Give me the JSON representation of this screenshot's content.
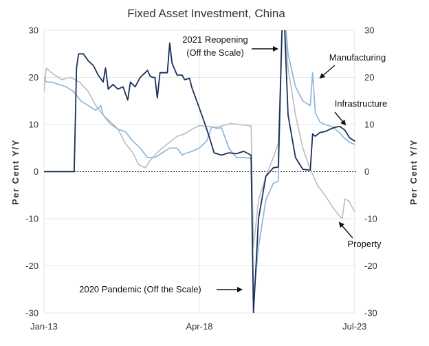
{
  "chart_data": {
    "type": "line",
    "title": "Fixed Asset Investment, China",
    "ylabel_left": "Per Cent Y/Y",
    "ylabel_right": "Per Cent Y/Y",
    "ylim": [
      -30,
      30
    ],
    "yticks": [
      30,
      20,
      10,
      0,
      -10,
      -20,
      -30
    ],
    "xlim": [
      2013.0,
      2023.55
    ],
    "xticks": [
      {
        "label": "Jan-13",
        "value": 2013.0
      },
      {
        "label": "Apr-18",
        "value": 2018.25
      },
      {
        "label": "Jul-23",
        "value": 2023.5
      }
    ],
    "colors": {
      "Property": "#bcbcbc",
      "Infrastructure": "#1a2f5a",
      "Manufacturing": "#8fb6d8",
      "zero_line": "#333333"
    },
    "series": [
      {
        "name": "Property",
        "points": [
          [
            2013.0,
            17
          ],
          [
            2013.08,
            22
          ],
          [
            2013.25,
            21
          ],
          [
            2013.6,
            19.5
          ],
          [
            2013.9,
            20
          ],
          [
            2014.2,
            19
          ],
          [
            2014.5,
            17
          ],
          [
            2014.75,
            14
          ],
          [
            2015.0,
            12
          ],
          [
            2015.25,
            10
          ],
          [
            2015.5,
            9
          ],
          [
            2015.75,
            6
          ],
          [
            2016.0,
            4
          ],
          [
            2016.2,
            1.5
          ],
          [
            2016.42,
            0.8
          ],
          [
            2016.6,
            2.5
          ],
          [
            2016.9,
            4.5
          ],
          [
            2017.2,
            6
          ],
          [
            2017.5,
            7.5
          ],
          [
            2017.75,
            8
          ],
          [
            2018.0,
            9
          ],
          [
            2018.25,
            9.8
          ],
          [
            2018.5,
            9.6
          ],
          [
            2018.8,
            9.4
          ],
          [
            2019.0,
            9.7
          ],
          [
            2019.3,
            10.2
          ],
          [
            2019.6,
            10
          ],
          [
            2019.9,
            9.8
          ],
          [
            2020.0,
            9.7
          ],
          [
            2020.08,
            -16
          ],
          [
            2020.25,
            -6
          ],
          [
            2020.5,
            -1
          ],
          [
            2020.75,
            3
          ],
          [
            2020.92,
            6
          ],
          [
            2021.08,
            35
          ],
          [
            2021.25,
            22
          ],
          [
            2021.5,
            12
          ],
          [
            2021.75,
            5
          ],
          [
            2022.0,
            0.5
          ],
          [
            2022.25,
            -3
          ],
          [
            2022.5,
            -5
          ],
          [
            2022.75,
            -7.5
          ],
          [
            2023.0,
            -9.5
          ],
          [
            2023.08,
            -10
          ],
          [
            2023.17,
            -5.8
          ],
          [
            2023.3,
            -6.2
          ],
          [
            2023.5,
            -8.5
          ]
        ]
      },
      {
        "name": "Infrastructure",
        "points": [
          [
            2013.0,
            0
          ],
          [
            2014.0,
            0
          ],
          [
            2014.02,
            0
          ],
          [
            2014.1,
            22
          ],
          [
            2014.17,
            25
          ],
          [
            2014.33,
            25
          ],
          [
            2014.5,
            23.5
          ],
          [
            2014.67,
            22.5
          ],
          [
            2014.83,
            20.5
          ],
          [
            2015.0,
            19
          ],
          [
            2015.08,
            22
          ],
          [
            2015.17,
            17.5
          ],
          [
            2015.33,
            18.5
          ],
          [
            2015.5,
            17.5
          ],
          [
            2015.67,
            18
          ],
          [
            2015.83,
            15.2
          ],
          [
            2015.92,
            19
          ],
          [
            2016.08,
            18
          ],
          [
            2016.25,
            20
          ],
          [
            2016.42,
            21
          ],
          [
            2016.5,
            21.5
          ],
          [
            2016.58,
            20.3
          ],
          [
            2016.67,
            20
          ],
          [
            2016.75,
            20
          ],
          [
            2016.83,
            15.6
          ],
          [
            2016.92,
            21
          ],
          [
            2017.08,
            21
          ],
          [
            2017.17,
            21
          ],
          [
            2017.25,
            27.3
          ],
          [
            2017.33,
            23
          ],
          [
            2017.5,
            20.5
          ],
          [
            2017.67,
            20.5
          ],
          [
            2017.75,
            19.5
          ],
          [
            2017.92,
            19.8
          ],
          [
            2018.0,
            17.8
          ],
          [
            2018.25,
            13.5
          ],
          [
            2018.42,
            10.5
          ],
          [
            2018.58,
            7.5
          ],
          [
            2018.75,
            4
          ],
          [
            2019.0,
            3.5
          ],
          [
            2019.25,
            4
          ],
          [
            2019.5,
            3.8
          ],
          [
            2019.75,
            4.3
          ],
          [
            2020.0,
            3.5
          ],
          [
            2020.08,
            -30
          ],
          [
            2020.25,
            -10
          ],
          [
            2020.5,
            -1
          ],
          [
            2020.75,
            0.8
          ],
          [
            2020.92,
            1
          ],
          [
            2021.08,
            39
          ],
          [
            2021.25,
            12
          ],
          [
            2021.5,
            3
          ],
          [
            2021.75,
            0.5
          ],
          [
            2022.0,
            0.3
          ],
          [
            2022.08,
            8
          ],
          [
            2022.17,
            7.5
          ],
          [
            2022.33,
            8.3
          ],
          [
            2022.5,
            8.5
          ],
          [
            2022.67,
            9
          ],
          [
            2022.83,
            9.4
          ],
          [
            2023.0,
            9.6
          ],
          [
            2023.17,
            8.8
          ],
          [
            2023.33,
            7.2
          ],
          [
            2023.5,
            6.5
          ]
        ]
      },
      {
        "name": "Manufacturing",
        "points": [
          [
            2013.0,
            20
          ],
          [
            2013.08,
            19
          ],
          [
            2013.25,
            19
          ],
          [
            2013.5,
            18.5
          ],
          [
            2013.75,
            18
          ],
          [
            2014.0,
            17
          ],
          [
            2014.25,
            15
          ],
          [
            2014.5,
            14
          ],
          [
            2014.75,
            13
          ],
          [
            2014.92,
            14
          ],
          [
            2015.0,
            12
          ],
          [
            2015.25,
            10.5
          ],
          [
            2015.5,
            9
          ],
          [
            2015.75,
            8.5
          ],
          [
            2016.0,
            6.5
          ],
          [
            2016.25,
            5
          ],
          [
            2016.5,
            3
          ],
          [
            2016.75,
            3
          ],
          [
            2017.0,
            4
          ],
          [
            2017.25,
            5
          ],
          [
            2017.5,
            5
          ],
          [
            2017.67,
            3.5
          ],
          [
            2017.75,
            3.8
          ],
          [
            2018.0,
            4.3
          ],
          [
            2018.25,
            5
          ],
          [
            2018.5,
            6.5
          ],
          [
            2018.67,
            9.5
          ],
          [
            2018.83,
            9.2
          ],
          [
            2019.0,
            9.3
          ],
          [
            2019.25,
            5
          ],
          [
            2019.5,
            3
          ],
          [
            2019.75,
            3
          ],
          [
            2020.0,
            2.8
          ],
          [
            2020.08,
            -27
          ],
          [
            2020.25,
            -16
          ],
          [
            2020.5,
            -6
          ],
          [
            2020.75,
            -2.5
          ],
          [
            2020.92,
            -2
          ],
          [
            2021.08,
            38
          ],
          [
            2021.25,
            25
          ],
          [
            2021.5,
            18
          ],
          [
            2021.75,
            15
          ],
          [
            2022.0,
            14
          ],
          [
            2022.08,
            21
          ],
          [
            2022.17,
            12.5
          ],
          [
            2022.33,
            10.5
          ],
          [
            2022.5,
            10
          ],
          [
            2022.75,
            9.5
          ],
          [
            2023.0,
            8.2
          ],
          [
            2023.17,
            7
          ],
          [
            2023.33,
            6.2
          ],
          [
            2023.5,
            5.8
          ]
        ]
      }
    ],
    "annotations": [
      {
        "id": "reopening-1",
        "text": "2021 Reopening"
      },
      {
        "id": "reopening-2",
        "text": "(Off the Scale)"
      },
      {
        "id": "pandemic",
        "text": "2020 Pandemic (Off the Scale)"
      },
      {
        "id": "manufacturing",
        "text": "Manufacturing"
      },
      {
        "id": "infrastructure",
        "text": "Infrastructure"
      },
      {
        "id": "property",
        "text": "Property"
      }
    ]
  }
}
